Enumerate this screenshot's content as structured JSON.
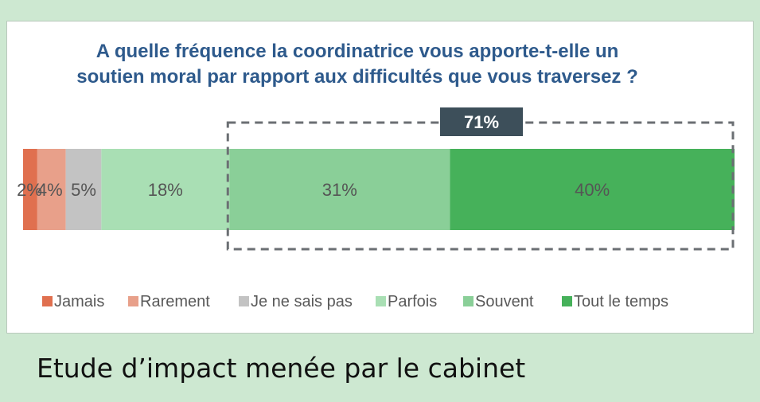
{
  "chart_data": {
    "type": "bar",
    "orientation": "horizontal-stacked-100",
    "title_lines": [
      "A quelle fréquence la coordinatrice vous apporte-t-elle un",
      "soutien moral par rapport aux difficultés que vous traversez ?"
    ],
    "segments": [
      {
        "name": "Jamais",
        "value": 2,
        "label": "2%",
        "color": "#e0704f"
      },
      {
        "name": "Rarement",
        "value": 4,
        "label": "4%",
        "color": "#e8a08a"
      },
      {
        "name": "Je ne sais pas",
        "value": 5,
        "label": "5%",
        "color": "#c3c3c3"
      },
      {
        "name": "Parfois",
        "value": 18,
        "label": "18%",
        "color": "#a9dfb4"
      },
      {
        "name": "Souvent",
        "value": 31,
        "label": "31%",
        "color": "#8acf98"
      },
      {
        "name": "Tout le temps",
        "value": 40,
        "label": "40%",
        "color": "#46b15a"
      }
    ],
    "highlight": {
      "label": "71%",
      "covers": [
        "Souvent",
        "Tout le temps"
      ],
      "color": "#3d4f5a"
    },
    "legend_position": "bottom",
    "grid": false
  },
  "footer_text": "Etude d’impact menée par le cabinet",
  "colors": {
    "background": "#cde8d1",
    "title": "#2e5a8c",
    "bar_label": "#555555"
  }
}
